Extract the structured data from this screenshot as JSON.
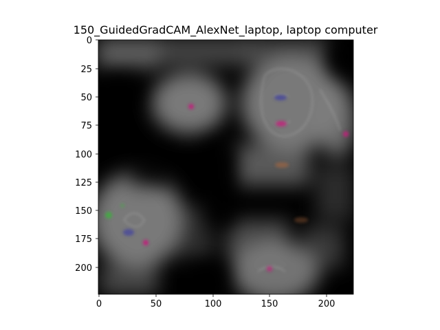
{
  "figure": {
    "title": "150_GuidedGradCAM_AlexNet_laptop, laptop computer"
  },
  "axes": {
    "x_ticks": [
      "0",
      "50",
      "100",
      "150",
      "200"
    ],
    "y_ticks": [
      "0",
      "25",
      "50",
      "75",
      "100",
      "125",
      "150",
      "175",
      "200"
    ]
  },
  "image": {
    "description_colors": {
      "background": "#000000",
      "glow": "#8a8a8a",
      "accent_magenta": "#c0207a",
      "accent_green": "#3fae3f",
      "accent_blue": "#4a4a9a",
      "accent_orange": "#b86a3a"
    }
  }
}
